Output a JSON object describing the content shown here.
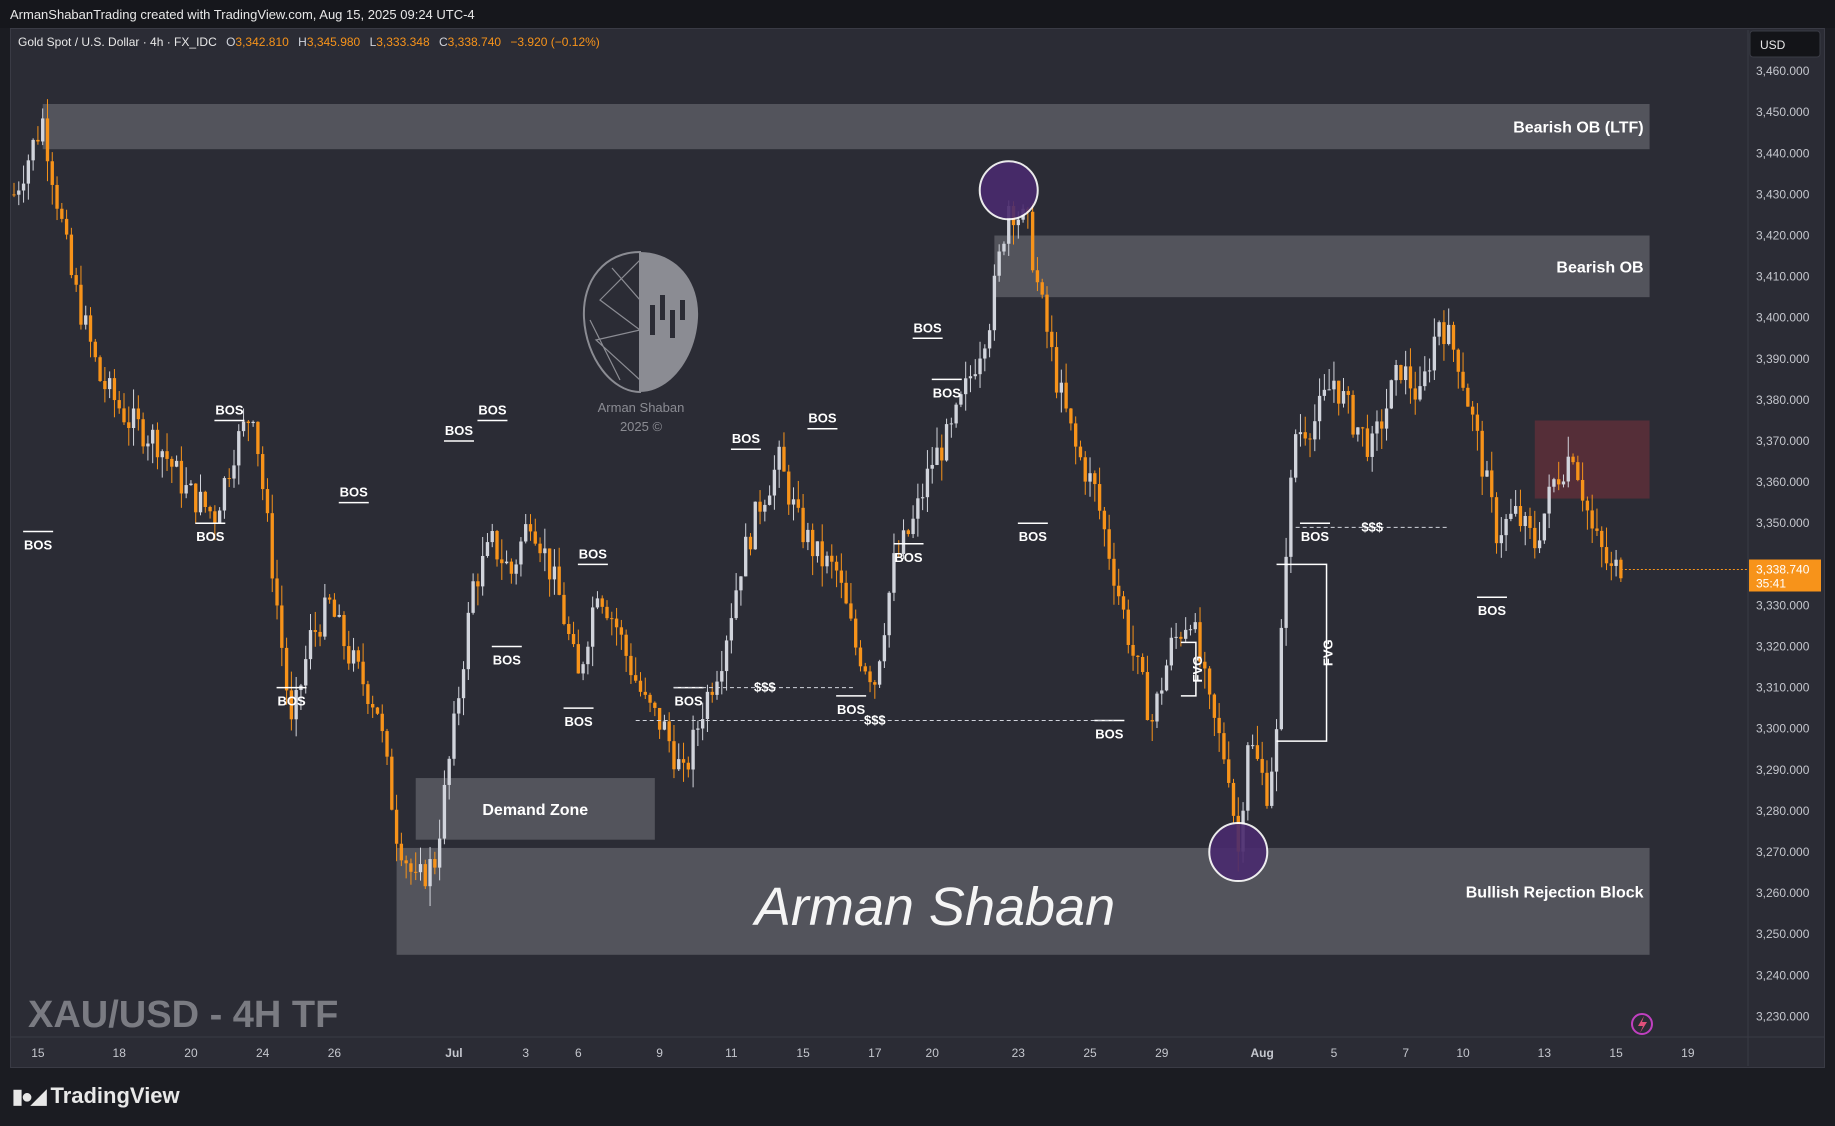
{
  "credit": "ArmanShabanTrading created with TradingView.com, Aug 15, 2025 09:24 UTC-4",
  "symbol_title": "Gold Spot / U.S. Dollar · 4h · FX_IDC",
  "ohlc": {
    "o_label": "O",
    "o": "3,342.810",
    "h_label": "H",
    "h": "3,345.980",
    "l_label": "L",
    "l": "3,333.348",
    "c_label": "C",
    "c": "3,338.740",
    "change": "−3.920 (−0.12%)"
  },
  "currency": "USD",
  "last_price": "3,338.740",
  "countdown": "35:41",
  "big_label": "XAU/USD - 4H TF",
  "signature": "Arman Shaban",
  "logo_text": "Arman Shaban",
  "logo_year": "2025 ©",
  "brand": "TradingView",
  "colors": {
    "up": "#d1d4dc",
    "down": "#f7931a",
    "zone": "#5b5c63",
    "purple": "#4a2a6e",
    "maroon": "#5a2f38"
  },
  "chart_data": {
    "type": "candlestick",
    "y_ticks": [
      3230,
      3240,
      3250,
      3260,
      3270,
      3280,
      3290,
      3300,
      3310,
      3320,
      3330,
      3340,
      3350,
      3360,
      3370,
      3380,
      3390,
      3400,
      3410,
      3420,
      3430,
      3440,
      3450,
      3460
    ],
    "y_tick_labels": [
      "3,230.000",
      "3,240.000",
      "3,250.000",
      "3,260.000",
      "3,270.000",
      "3,280.000",
      "3,290.000",
      "3,300.000",
      "3,310.000",
      "3,320.000",
      "3,330.000",
      "3,340.000",
      "3,350.000",
      "3,360.000",
      "3,370.000",
      "3,380.000",
      "3,390.000",
      "3,400.000",
      "3,410.000",
      "3,420.000",
      "3,430.000",
      "3,440.000",
      "3,450.000",
      "3,460.000"
    ],
    "x_tick_labels": [
      "15",
      "18",
      "20",
      "24",
      "26",
      "Jul",
      "3",
      "6",
      "9",
      "11",
      "15",
      "17",
      "20",
      "23",
      "25",
      "29",
      "Aug",
      "5",
      "7",
      "10",
      "13",
      "15",
      "19"
    ],
    "x_tick_bars": [
      5,
      22,
      37,
      52,
      67,
      92,
      107,
      118,
      135,
      150,
      165,
      180,
      192,
      210,
      225,
      240,
      261,
      276,
      291,
      303,
      320,
      335,
      350
    ],
    "ylim": [
      3225,
      3470
    ],
    "path": [
      [
        0,
        3430
      ],
      [
        6,
        3448
      ],
      [
        12,
        3410
      ],
      [
        18,
        3385
      ],
      [
        24,
        3375
      ],
      [
        30,
        3370
      ],
      [
        36,
        3358
      ],
      [
        42,
        3352
      ],
      [
        46,
        3368
      ],
      [
        50,
        3378
      ],
      [
        55,
        3330
      ],
      [
        58,
        3300
      ],
      [
        62,
        3322
      ],
      [
        66,
        3330
      ],
      [
        70,
        3318
      ],
      [
        76,
        3305
      ],
      [
        80,
        3275
      ],
      [
        84,
        3262
      ],
      [
        88,
        3268
      ],
      [
        92,
        3300
      ],
      [
        96,
        3335
      ],
      [
        100,
        3345
      ],
      [
        104,
        3338
      ],
      [
        108,
        3352
      ],
      [
        110,
        3346
      ],
      [
        114,
        3332
      ],
      [
        118,
        3312
      ],
      [
        122,
        3335
      ],
      [
        126,
        3325
      ],
      [
        128,
        3318
      ],
      [
        132,
        3306
      ],
      [
        136,
        3300
      ],
      [
        140,
        3288
      ],
      [
        144,
        3305
      ],
      [
        148,
        3318
      ],
      [
        152,
        3340
      ],
      [
        156,
        3355
      ],
      [
        160,
        3365
      ],
      [
        164,
        3350
      ],
      [
        168,
        3342
      ],
      [
        172,
        3338
      ],
      [
        176,
        3320
      ],
      [
        180,
        3312
      ],
      [
        184,
        3340
      ],
      [
        188,
        3350
      ],
      [
        192,
        3365
      ],
      [
        196,
        3372
      ],
      [
        200,
        3386
      ],
      [
        204,
        3400
      ],
      [
        208,
        3428
      ],
      [
        212,
        3422
      ],
      [
        214,
        3408
      ],
      [
        218,
        3385
      ],
      [
        222,
        3368
      ],
      [
        226,
        3358
      ],
      [
        230,
        3338
      ],
      [
        234,
        3318
      ],
      [
        238,
        3302
      ],
      [
        242,
        3320
      ],
      [
        246,
        3328
      ],
      [
        250,
        3305
      ],
      [
        254,
        3290
      ],
      [
        256,
        3270
      ],
      [
        258,
        3298
      ],
      [
        262,
        3285
      ],
      [
        264,
        3298
      ],
      [
        266,
        3345
      ],
      [
        268,
        3372
      ],
      [
        272,
        3375
      ],
      [
        276,
        3385
      ],
      [
        280,
        3375
      ],
      [
        284,
        3368
      ],
      [
        288,
        3382
      ],
      [
        290,
        3388
      ],
      [
        294,
        3380
      ],
      [
        298,
        3400
      ],
      [
        302,
        3390
      ],
      [
        306,
        3370
      ],
      [
        310,
        3348
      ],
      [
        314,
        3352
      ],
      [
        318,
        3345
      ],
      [
        322,
        3360
      ],
      [
        326,
        3368
      ],
      [
        330,
        3348
      ],
      [
        334,
        3338
      ],
      [
        336,
        3340
      ]
    ],
    "annotations": {
      "bos": [
        {
          "label": "BOS",
          "bar": 4,
          "price": 3348,
          "pos": "below"
        },
        {
          "label": "BOS",
          "bar": 44,
          "price": 3375,
          "pos": "above"
        },
        {
          "label": "BOS",
          "bar": 40,
          "price": 3350,
          "pos": "below"
        },
        {
          "label": "BOS",
          "bar": 70,
          "price": 3355,
          "pos": "above"
        },
        {
          "label": "BOS",
          "bar": 57,
          "price": 3310,
          "pos": "below"
        },
        {
          "label": "BOS",
          "bar": 92,
          "price": 3370,
          "pos": "above"
        },
        {
          "label": "BOS",
          "bar": 99,
          "price": 3375,
          "pos": "above"
        },
        {
          "label": "BOS",
          "bar": 102,
          "price": 3320,
          "pos": "below"
        },
        {
          "label": "BOS",
          "bar": 120,
          "price": 3340,
          "pos": "above"
        },
        {
          "label": "BOS",
          "bar": 117,
          "price": 3305,
          "pos": "below"
        },
        {
          "label": "BOS",
          "bar": 152,
          "price": 3368,
          "pos": "above"
        },
        {
          "label": "BOS",
          "bar": 168,
          "price": 3373,
          "pos": "above"
        },
        {
          "label": "BOS",
          "bar": 140,
          "price": 3310,
          "pos": "below"
        },
        {
          "label": "BOS",
          "bar": 174,
          "price": 3308,
          "pos": "below"
        },
        {
          "label": "BOS",
          "bar": 190,
          "price": 3395,
          "pos": "above"
        },
        {
          "label": "BOS",
          "bar": 194,
          "price": 3385,
          "pos": "below"
        },
        {
          "label": "BOS",
          "bar": 186,
          "price": 3345,
          "pos": "below"
        },
        {
          "label": "BOS",
          "bar": 212,
          "price": 3350,
          "pos": "below"
        },
        {
          "label": "BOS",
          "bar": 228,
          "price": 3302,
          "pos": "below"
        },
        {
          "label": "BOS",
          "bar": 271,
          "price": 3350,
          "pos": "below"
        },
        {
          "label": "BOS",
          "bar": 308,
          "price": 3332,
          "pos": "below"
        }
      ],
      "liquidity": [
        {
          "label": "$$$",
          "from_bar": 138,
          "to_bar": 176,
          "price": 3310
        },
        {
          "label": "$$$",
          "from_bar": 130,
          "to_bar": 230,
          "price": 3302
        },
        {
          "label": "$$$",
          "from_bar": 268,
          "to_bar": 300,
          "price": 3349
        }
      ],
      "zones": [
        {
          "label": "Bearish OB (LTF)",
          "from_bar": 6,
          "to_bar": 342,
          "top": 3452,
          "bottom": 3441
        },
        {
          "label": "Bearish OB",
          "from_bar": 205,
          "to_bar": 342,
          "top": 3420,
          "bottom": 3405
        },
        {
          "label": "Demand Zone",
          "from_bar": 84,
          "to_bar": 134,
          "top": 3288,
          "bottom": 3273
        },
        {
          "label": "Bullish Rejection Block",
          "from_bar": 80,
          "to_bar": 342,
          "top": 3271,
          "bottom": 3245
        }
      ],
      "fvg": [
        {
          "label": "FVG",
          "bar": 244,
          "top": 3321,
          "bottom": 3308
        },
        {
          "label": "FVG",
          "bar": 264,
          "top": 3340,
          "bottom": 3297
        }
      ]
    }
  }
}
